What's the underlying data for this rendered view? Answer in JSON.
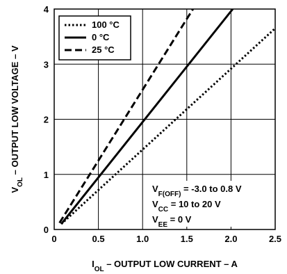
{
  "chart_data": {
    "type": "line",
    "title": "",
    "xlabel": {
      "main": "I",
      "sub": "OL",
      "rest": " – OUTPUT LOW CURRENT – A"
    },
    "ylabel": {
      "main": "V",
      "sub": "OL",
      "rest": " – OUTPUT LOW VOLTAGE – V"
    },
    "xlim": [
      0,
      2.5
    ],
    "ylim": [
      0,
      4
    ],
    "xticks": [
      0,
      0.5,
      1,
      1.5,
      2,
      2.5
    ],
    "xtick_labels": [
      "0",
      "0.5",
      "1.0",
      "1.5",
      "2.0",
      "2.5"
    ],
    "yticks": [
      0,
      1,
      2,
      3,
      4
    ],
    "ytick_labels": [
      "0",
      "1",
      "2",
      "3",
      "4"
    ],
    "grid": true,
    "legend_position": "top-left",
    "series": [
      {
        "name": "100 °C",
        "style": "dotted",
        "x": [
          0.08,
          2.5
        ],
        "y": [
          0.1,
          3.65
        ]
      },
      {
        "name": "0 °C",
        "style": "solid",
        "x": [
          0.08,
          2.02
        ],
        "y": [
          0.1,
          4.0
        ]
      },
      {
        "name": "25 °C",
        "style": "dashed",
        "x": [
          0.06,
          1.57
        ],
        "y": [
          0.12,
          4.0
        ]
      }
    ],
    "annotations": [
      {
        "main": "V",
        "sub": "F(OFF)",
        "rest": " = -3.0 to 0.8 V"
      },
      {
        "main": "V",
        "sub": "CC",
        "rest": " = 10 to 20 V"
      },
      {
        "main": "V",
        "sub": "EE",
        "rest": " = 0 V"
      }
    ]
  }
}
